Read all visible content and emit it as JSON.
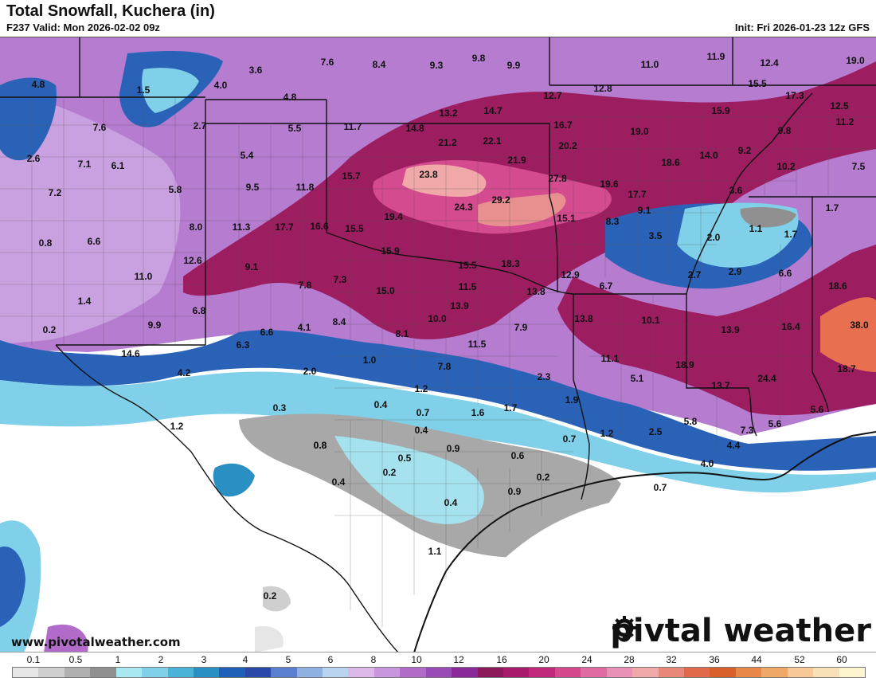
{
  "header": {
    "title": "Total Snowfall, Kuchera (in)",
    "valid": "F237 Valid: Mon 2026-02-02 09z",
    "init": "Init: Fri 2026-01-23 12z GFS"
  },
  "footer": {
    "website": "www.pivotalweather.com",
    "brand_left": "piv",
    "brand_right": "tal weather"
  },
  "legend": {
    "labels": [
      "0.1",
      "0.5",
      "1",
      "2",
      "3",
      "4",
      "5",
      "6",
      "8",
      "10",
      "12",
      "16",
      "20",
      "24",
      "28",
      "32",
      "36",
      "44",
      "52",
      "60"
    ],
    "colors": [
      "#e6e6e6",
      "#cfcfcf",
      "#b0b0b0",
      "#909090",
      "#a8e8f0",
      "#7fd0e8",
      "#4bb3d8",
      "#2a8fc2",
      "#1e5fb8",
      "#2a48a8",
      "#5a7fd0",
      "#8fb0e0",
      "#b8d4ee",
      "#dcb8e8",
      "#c896dc",
      "#b06cc8",
      "#9a4cb6",
      "#8a2a9a",
      "#8c1a5a",
      "#a81a6a",
      "#c0287a",
      "#d4488e",
      "#e06aa2",
      "#e890b6",
      "#f0a8a8",
      "#e88878",
      "#e06a4a",
      "#d8602a",
      "#e88848",
      "#f0a868",
      "#f8c898",
      "#f8e0b8",
      "#fff4d0"
    ]
  },
  "map_values": [
    {
      "v": "4.8"
    },
    {
      "v": "1.5"
    },
    {
      "v": "4.0"
    },
    {
      "v": "3.6"
    },
    {
      "v": "7.6"
    },
    {
      "v": "8.4"
    },
    {
      "v": "9.3"
    },
    {
      "v": "9.8"
    },
    {
      "v": "9.9"
    },
    {
      "v": "11.0"
    },
    {
      "v": "11.9"
    },
    {
      "v": "12.4"
    },
    {
      "v": "19.0"
    },
    {
      "v": "4.8"
    },
    {
      "v": "12.7"
    },
    {
      "v": "12.8"
    },
    {
      "v": "15.5"
    },
    {
      "v": "17.3"
    },
    {
      "v": "12.5"
    },
    {
      "v": "7.6"
    },
    {
      "v": "2.7"
    },
    {
      "v": "5.5"
    },
    {
      "v": "11.7"
    },
    {
      "v": "14.8"
    },
    {
      "v": "13.2"
    },
    {
      "v": "14.7"
    },
    {
      "v": "16.7"
    },
    {
      "v": "15.9"
    },
    {
      "v": "11.2"
    },
    {
      "v": "2.6"
    },
    {
      "v": "7.1"
    },
    {
      "v": "6.1"
    },
    {
      "v": "5.4"
    },
    {
      "v": "21.2"
    },
    {
      "v": "22.1"
    },
    {
      "v": "20.2"
    },
    {
      "v": "19.0"
    },
    {
      "v": "14.0"
    },
    {
      "v": "9.2"
    },
    {
      "v": "9.8"
    },
    {
      "v": "7.2"
    },
    {
      "v": "5.8"
    },
    {
      "v": "9.5"
    },
    {
      "v": "11.8"
    },
    {
      "v": "15.7"
    },
    {
      "v": "23.8"
    },
    {
      "v": "21.9"
    },
    {
      "v": "27.8"
    },
    {
      "v": "19.6"
    },
    {
      "v": "18.6"
    },
    {
      "v": "10.2"
    },
    {
      "v": "7.5"
    },
    {
      "v": "29.2"
    },
    {
      "v": "24.3"
    },
    {
      "v": "17.7"
    },
    {
      "v": "3.6"
    },
    {
      "v": "9.1"
    },
    {
      "v": "1.7"
    },
    {
      "v": "8.0"
    },
    {
      "v": "11.3"
    },
    {
      "v": "17.7"
    },
    {
      "v": "16.6"
    },
    {
      "v": "15.5"
    },
    {
      "v": "19.4"
    },
    {
      "v": "15.1"
    },
    {
      "v": "8.3"
    },
    {
      "v": "1.1"
    },
    {
      "v": "1.7"
    },
    {
      "v": "0.8"
    },
    {
      "v": "6.6"
    },
    {
      "v": "15.9"
    },
    {
      "v": "3.5"
    },
    {
      "v": "2.0"
    },
    {
      "v": "12.6"
    },
    {
      "v": "9.1"
    },
    {
      "v": "15.5"
    },
    {
      "v": "18.3"
    },
    {
      "v": "12.9"
    },
    {
      "v": "6.7"
    },
    {
      "v": "2.7"
    },
    {
      "v": "2.9"
    },
    {
      "v": "6.6"
    },
    {
      "v": "11.0"
    },
    {
      "v": "7.8"
    },
    {
      "v": "7.3"
    },
    {
      "v": "11.5"
    },
    {
      "v": "13.8"
    },
    {
      "v": "18.6"
    },
    {
      "v": "1.4"
    },
    {
      "v": "15.0"
    },
    {
      "v": "13.9"
    },
    {
      "v": "13.8"
    },
    {
      "v": "0.2"
    },
    {
      "v": "6.8"
    },
    {
      "v": "9.9"
    },
    {
      "v": "6.6"
    },
    {
      "v": "4.1"
    },
    {
      "v": "8.4"
    },
    {
      "v": "8.1"
    },
    {
      "v": "10.0"
    },
    {
      "v": "7.9"
    },
    {
      "v": "10.1"
    },
    {
      "v": "13.9"
    },
    {
      "v": "16.4"
    },
    {
      "v": "38.0"
    },
    {
      "v": "14.6"
    },
    {
      "v": "6.3"
    },
    {
      "v": "11.5"
    },
    {
      "v": "11.1"
    },
    {
      "v": "1.0"
    },
    {
      "v": "18.9"
    },
    {
      "v": "4.2"
    },
    {
      "v": "2.0"
    },
    {
      "v": "7.8"
    },
    {
      "v": "2.3"
    },
    {
      "v": "5.1"
    },
    {
      "v": "24.4"
    },
    {
      "v": "18.7"
    },
    {
      "v": "1.2"
    },
    {
      "v": "1.9"
    },
    {
      "v": "13.7"
    },
    {
      "v": "0.3"
    },
    {
      "v": "0.4"
    },
    {
      "v": "0.7"
    },
    {
      "v": "1.6"
    },
    {
      "v": "1.7"
    },
    {
      "v": "5.8"
    },
    {
      "v": "5.6"
    },
    {
      "v": "1.2"
    },
    {
      "v": "0.4"
    },
    {
      "v": "0.8"
    },
    {
      "v": "1.2"
    },
    {
      "v": "2.5"
    },
    {
      "v": "7.3"
    },
    {
      "v": "5.6"
    },
    {
      "v": "0.8"
    },
    {
      "v": "0.7"
    },
    {
      "v": "0.9"
    },
    {
      "v": "4.4"
    },
    {
      "v": "0.5"
    },
    {
      "v": "0.6"
    },
    {
      "v": "0.2"
    },
    {
      "v": "4.0"
    },
    {
      "v": "0.4"
    },
    {
      "v": "0.2"
    },
    {
      "v": "0.9"
    },
    {
      "v": "0.7"
    },
    {
      "v": "0.4"
    },
    {
      "v": "1.1"
    },
    {
      "v": "0.2"
    }
  ]
}
